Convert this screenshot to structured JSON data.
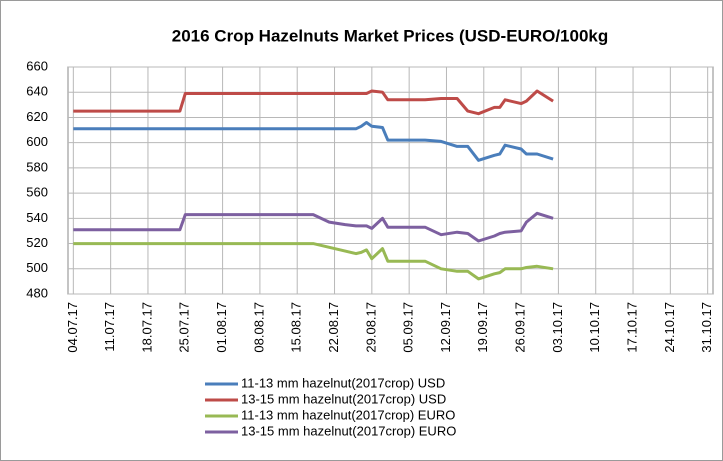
{
  "chart_data": {
    "type": "line",
    "title": "2016 Crop Hazelnuts Market Prices (USD-EURO/100kg",
    "x": [
      "2017-07-04",
      "2017-07-24",
      "2017-07-25",
      "2017-08-15",
      "2017-08-18",
      "2017-08-21",
      "2017-08-24",
      "2017-08-26",
      "2017-08-27",
      "2017-08-28",
      "2017-08-29",
      "2017-08-31",
      "2017-09-01",
      "2017-09-08",
      "2017-09-11",
      "2017-09-14",
      "2017-09-16",
      "2017-09-18",
      "2017-09-21",
      "2017-09-22",
      "2017-09-23",
      "2017-09-26",
      "2017-09-27",
      "2017-09-29",
      "2017-10-02"
    ],
    "series": [
      {
        "name": "11-13 mm hazelnut(2017crop) USD",
        "color": "#4a7ebb",
        "values": [
          611,
          611,
          611,
          611,
          611,
          611,
          611,
          611,
          613,
          616,
          613,
          612,
          602,
          602,
          601,
          597,
          597,
          586,
          590,
          591,
          598,
          595,
          591,
          591,
          587
        ]
      },
      {
        "name": "13-15 mm hazelnut(2017crop) USD",
        "color": "#be4b48",
        "values": [
          625,
          625,
          639,
          639,
          639,
          639,
          639,
          639,
          639,
          639,
          641,
          640,
          634,
          634,
          635,
          635,
          625,
          623,
          628,
          628,
          634,
          631,
          633,
          641,
          633
        ]
      },
      {
        "name": "11-13 mm hazelnut(2017crop) EURO",
        "color": "#98b954",
        "values": [
          520,
          520,
          520,
          520,
          520,
          517,
          514,
          512,
          513,
          515,
          508,
          516,
          506,
          506,
          500,
          498,
          498,
          492,
          496,
          497,
          500,
          500,
          501,
          502,
          500
        ]
      },
      {
        "name": "13-15 mm hazelnut(2017crop) EURO",
        "color": "#7d60a0",
        "values": [
          531,
          531,
          543,
          543,
          543,
          537,
          535,
          534,
          534,
          534,
          532,
          540,
          533,
          533,
          527,
          529,
          528,
          522,
          526,
          528,
          529,
          530,
          537,
          544,
          540
        ]
      }
    ],
    "xlim": [
      "2017-07-03",
      "2017-11-01"
    ],
    "xticks": [
      {
        "value": "2017-07-04",
        "label": "04.07.17"
      },
      {
        "value": "2017-07-11",
        "label": "11.07.17"
      },
      {
        "value": "2017-07-18",
        "label": "18.07.17"
      },
      {
        "value": "2017-07-25",
        "label": "25.07.17"
      },
      {
        "value": "2017-08-01",
        "label": "01.08.17"
      },
      {
        "value": "2017-08-08",
        "label": "08.08.17"
      },
      {
        "value": "2017-08-15",
        "label": "15.08.17"
      },
      {
        "value": "2017-08-22",
        "label": "22.08.17"
      },
      {
        "value": "2017-08-29",
        "label": "29.08.17"
      },
      {
        "value": "2017-09-05",
        "label": "05.09.17"
      },
      {
        "value": "2017-09-12",
        "label": "12.09.17"
      },
      {
        "value": "2017-09-19",
        "label": "19.09.17"
      },
      {
        "value": "2017-09-26",
        "label": "26.09.17"
      },
      {
        "value": "2017-10-03",
        "label": "03.10.17"
      },
      {
        "value": "2017-10-10",
        "label": "10.10.17"
      },
      {
        "value": "2017-10-17",
        "label": "17.10.17"
      },
      {
        "value": "2017-10-24",
        "label": "24.10.17"
      },
      {
        "value": "2017-10-31",
        "label": "31.10.17"
      }
    ],
    "ylim": [
      480,
      660
    ],
    "yticks": [
      480,
      500,
      520,
      540,
      560,
      580,
      600,
      620,
      640,
      660
    ],
    "grid": true
  }
}
